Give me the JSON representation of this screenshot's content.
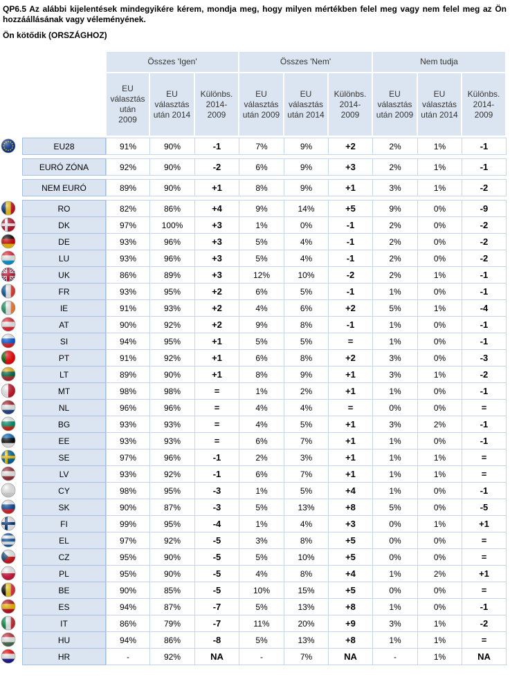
{
  "title": "QP6.5 Az alábbi kijelentések mindegyikére kérem, mondja meg, hogy milyen mértékben felel meg vagy nem felel meg az Ön hozzáállásának vagy véleményének.",
  "subtitle": "Ön kötődik (ORSZÁGHOZ)",
  "table": {
    "column_groups": [
      "Összes 'Igen'",
      "Összes 'Nem'",
      "Nem tudja"
    ],
    "column_headers": [
      "EU választás után 2009",
      "EU választás után 2014",
      "Különbs. 2014-2009",
      "EU választás után 2009",
      "EU választás után 2014",
      "Különbs. 2014-2009",
      "EU választás után 2009",
      "EU választás után 2014",
      "Különbs. 2014-2009"
    ],
    "rows": [
      [
        "EU28",
        "91%",
        "90%",
        "-1",
        "7%",
        "9%",
        "+2",
        "2%",
        "1%",
        "-1"
      ],
      [
        "EURÓ ZÓNA",
        "92%",
        "90%",
        "-2",
        "6%",
        "9%",
        "+3",
        "2%",
        "1%",
        "-1"
      ],
      [
        "NEM EURÓ",
        "89%",
        "90%",
        "+1",
        "8%",
        "9%",
        "+1",
        "3%",
        "1%",
        "-2"
      ],
      [
        "RO",
        "82%",
        "86%",
        "+4",
        "9%",
        "14%",
        "+5",
        "9%",
        "0%",
        "-9"
      ],
      [
        "DK",
        "97%",
        "100%",
        "+3",
        "1%",
        "0%",
        "-1",
        "2%",
        "0%",
        "-2"
      ],
      [
        "DE",
        "93%",
        "96%",
        "+3",
        "5%",
        "4%",
        "-1",
        "2%",
        "0%",
        "-2"
      ],
      [
        "LU",
        "93%",
        "96%",
        "+3",
        "5%",
        "4%",
        "-1",
        "2%",
        "0%",
        "-2"
      ],
      [
        "UK",
        "86%",
        "89%",
        "+3",
        "12%",
        "10%",
        "-2",
        "2%",
        "1%",
        "-1"
      ],
      [
        "FR",
        "93%",
        "95%",
        "+2",
        "6%",
        "5%",
        "-1",
        "1%",
        "0%",
        "-1"
      ],
      [
        "IE",
        "91%",
        "93%",
        "+2",
        "4%",
        "6%",
        "+2",
        "5%",
        "1%",
        "-4"
      ],
      [
        "AT",
        "90%",
        "92%",
        "+2",
        "9%",
        "8%",
        "-1",
        "1%",
        "0%",
        "-1"
      ],
      [
        "SI",
        "94%",
        "95%",
        "+1",
        "5%",
        "5%",
        "=",
        "1%",
        "0%",
        "-1"
      ],
      [
        "PT",
        "91%",
        "92%",
        "+1",
        "6%",
        "8%",
        "+2",
        "3%",
        "0%",
        "-3"
      ],
      [
        "LT",
        "89%",
        "90%",
        "+1",
        "8%",
        "9%",
        "+1",
        "3%",
        "1%",
        "-2"
      ],
      [
        "MT",
        "98%",
        "98%",
        "=",
        "1%",
        "2%",
        "+1",
        "1%",
        "0%",
        "-1"
      ],
      [
        "NL",
        "96%",
        "96%",
        "=",
        "4%",
        "4%",
        "=",
        "0%",
        "0%",
        "="
      ],
      [
        "BG",
        "93%",
        "93%",
        "=",
        "4%",
        "5%",
        "+1",
        "3%",
        "2%",
        "-1"
      ],
      [
        "EE",
        "93%",
        "93%",
        "=",
        "6%",
        "7%",
        "+1",
        "1%",
        "0%",
        "-1"
      ],
      [
        "SE",
        "97%",
        "96%",
        "-1",
        "2%",
        "3%",
        "+1",
        "1%",
        "1%",
        "="
      ],
      [
        "LV",
        "93%",
        "92%",
        "-1",
        "6%",
        "7%",
        "+1",
        "1%",
        "1%",
        "="
      ],
      [
        "CY",
        "98%",
        "95%",
        "-3",
        "1%",
        "5%",
        "+4",
        "1%",
        "0%",
        "-1"
      ],
      [
        "SK",
        "90%",
        "87%",
        "-3",
        "5%",
        "13%",
        "+8",
        "5%",
        "0%",
        "-5"
      ],
      [
        "FI",
        "99%",
        "95%",
        "-4",
        "1%",
        "4%",
        "+3",
        "0%",
        "1%",
        "+1"
      ],
      [
        "EL",
        "97%",
        "92%",
        "-5",
        "3%",
        "8%",
        "+5",
        "0%",
        "0%",
        "="
      ],
      [
        "CZ",
        "95%",
        "90%",
        "-5",
        "5%",
        "10%",
        "+5",
        "0%",
        "0%",
        "="
      ],
      [
        "PL",
        "95%",
        "90%",
        "-5",
        "4%",
        "8%",
        "+4",
        "1%",
        "2%",
        "+1"
      ],
      [
        "BE",
        "90%",
        "85%",
        "-5",
        "10%",
        "15%",
        "+5",
        "0%",
        "0%",
        "="
      ],
      [
        "ES",
        "94%",
        "87%",
        "-7",
        "5%",
        "13%",
        "+8",
        "1%",
        "0%",
        "-1"
      ],
      [
        "IT",
        "86%",
        "79%",
        "-7",
        "11%",
        "20%",
        "+9",
        "3%",
        "1%",
        "-2"
      ],
      [
        "HU",
        "94%",
        "86%",
        "-8",
        "5%",
        "13%",
        "+8",
        "1%",
        "1%",
        "="
      ],
      [
        "HR",
        "-",
        "92%",
        "NA",
        "-",
        "7%",
        "NA",
        "-",
        "1%",
        "NA"
      ]
    ]
  }
}
